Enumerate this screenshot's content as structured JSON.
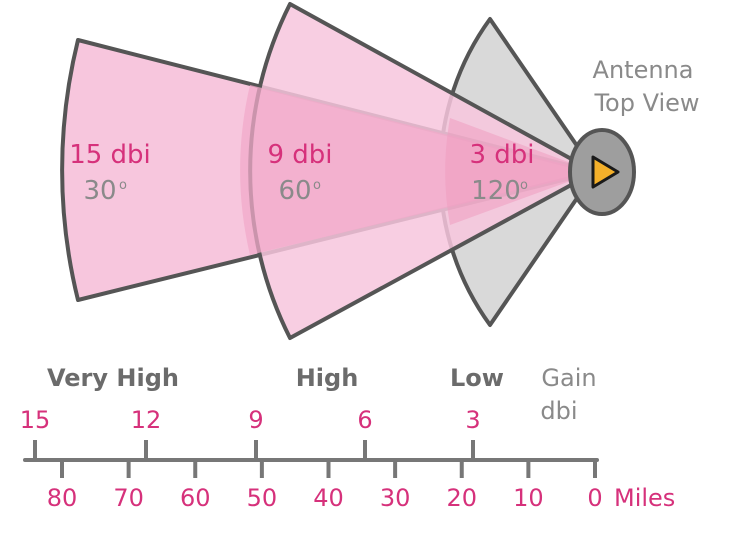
{
  "colors": {
    "wedge_fill": "#f7c6dd",
    "wedge_overlap": "#f1a9c9",
    "low_fill": "#d9d9d9",
    "outline": "#555555",
    "label_pink": "#d6317b",
    "label_grey": "#8a8a8a",
    "antenna_fill": "#9e9e9e",
    "antenna_arrow": "#f4b02a"
  },
  "antenna": {
    "line1": "Antenna",
    "line2": "Top View"
  },
  "wedges": [
    {
      "gain": "15 dbi",
      "angle": "30",
      "deg": "o"
    },
    {
      "gain": "9 dbi",
      "angle": "60",
      "deg": "o"
    },
    {
      "gain": "3 dbi",
      "angle": "120",
      "deg": "o"
    }
  ],
  "categories": {
    "very_high": "Very High",
    "high": "High",
    "low": "Low",
    "gain_line1": "Gain",
    "gain_line2": "dbi"
  },
  "scale": {
    "gain_ticks": [
      "15",
      "12",
      "9",
      "6",
      "3"
    ],
    "mile_ticks": [
      "80",
      "70",
      "60",
      "50",
      "40",
      "30",
      "20",
      "10",
      "0"
    ],
    "unit": "Miles"
  }
}
